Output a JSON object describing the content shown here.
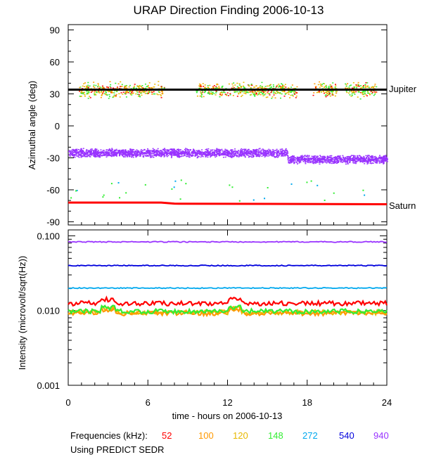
{
  "colors": {
    "f52": "#ff0000",
    "f100": "#ff9900",
    "f120": "#e8b800",
    "f148": "#33ee33",
    "f272": "#00a8ee",
    "f540": "#0000dd",
    "f940": "#9933ff",
    "jupiter_line": "#000000",
    "saturn_line": "#ff0000"
  },
  "legend": {
    "title": "Frequencies (kHz):",
    "items": [
      "52",
      "100",
      "120",
      "148",
      "272",
      "540",
      "940"
    ],
    "note": "Using PREDICT SEDR"
  },
  "chart_data": [
    {
      "type": "scatter",
      "title": "URAP Direction Finding  2006-10-13",
      "ylabel": "Azimuthal angle (deg)",
      "xlim": [
        0,
        24
      ],
      "ylim": [
        -93,
        95
      ],
      "y_ticks": [
        "90",
        "60",
        "30",
        "0",
        "-30",
        "-60",
        "-90"
      ],
      "reference_lines": [
        {
          "name": "Jupiter",
          "y": 34
        },
        {
          "name": "Saturn",
          "points": [
            [
              0,
              -72
            ],
            [
              7,
              -72
            ],
            [
              8,
              -73
            ],
            [
              24,
              -73.5
            ]
          ]
        }
      ],
      "series": [
        {
          "name": "940",
          "segments": [
            [
              0,
              16.5,
              -25
            ],
            [
              16.5,
              24,
              -31
            ]
          ]
        },
        {
          "name": "148",
          "note": "scattered points near Jupiter direction",
          "y_center": 34
        }
      ]
    },
    {
      "type": "line",
      "xlabel": "time - hours on 2006-10-13",
      "ylabel": "Intensity (microvolt/sqrt(Hz))",
      "x_ticks": [
        "0",
        "6",
        "12",
        "18",
        "24"
      ],
      "y_ticks": [
        "0.100",
        "0.010",
        "0.001"
      ],
      "yscale": "log",
      "ylim": [
        0.001,
        0.12
      ],
      "series": [
        {
          "name": "940",
          "level": 0.083
        },
        {
          "name": "540",
          "level": 0.04
        },
        {
          "name": "272",
          "level": 0.02
        },
        {
          "name": "52",
          "level": 0.0125
        },
        {
          "name": "120",
          "level": 0.0095
        },
        {
          "name": "100",
          "level": 0.0092
        },
        {
          "name": "148",
          "level": 0.0098
        }
      ]
    }
  ]
}
